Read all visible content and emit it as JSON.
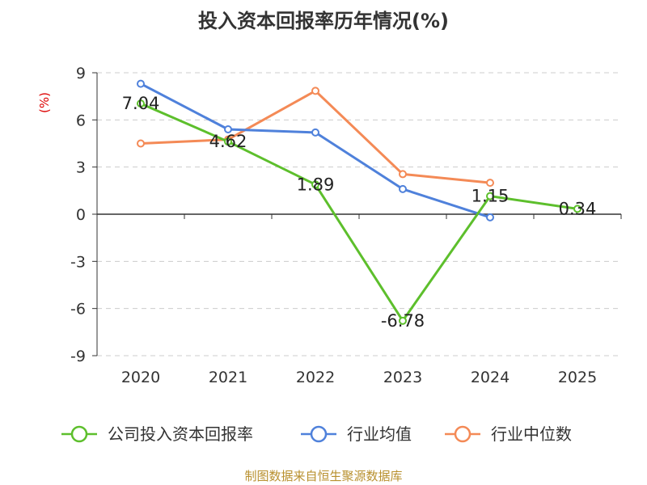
{
  "chart_data": {
    "type": "line",
    "title": "投入资本回报率历年情况(%)",
    "ylabel": "(%)",
    "xlabel": "",
    "categories": [
      "2020",
      "2021",
      "2022",
      "2023",
      "2024",
      "2025"
    ],
    "ylim": [
      -9,
      9
    ],
    "yticks": [
      9,
      6,
      3,
      0,
      -3,
      -6,
      -9
    ],
    "grid": true,
    "legend_position": "bottom",
    "series": [
      {
        "name": "公司投入资本回报率",
        "color": "#5dbf2c",
        "values": [
          7.04,
          4.62,
          1.89,
          -6.78,
          1.15,
          0.34
        ],
        "labels": [
          "7.04",
          "4.62",
          "1.89",
          "-6.78",
          "1.15",
          "0.34"
        ]
      },
      {
        "name": "行业均值",
        "color": "#4f81db",
        "values": [
          8.3,
          5.4,
          5.2,
          1.6,
          -0.2,
          null
        ]
      },
      {
        "name": "行业中位数",
        "color": "#f48a56",
        "values": [
          4.5,
          4.75,
          7.85,
          2.55,
          2.0,
          null
        ]
      }
    ]
  },
  "source": "制图数据来自恒生聚源数据库"
}
